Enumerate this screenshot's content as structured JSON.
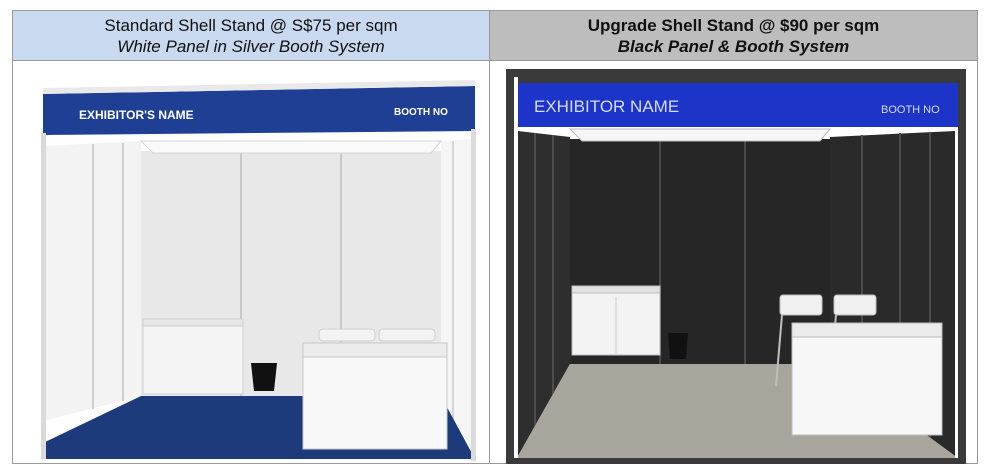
{
  "standard": {
    "title": "Standard Shell Stand @ S$75 per sqm",
    "subtitle": "White Panel in Silver Booth System",
    "fascia_name": "EXHIBITOR'S NAME",
    "fascia_booth": "BOOTH NO",
    "colors": {
      "header_bg": "#c9d9f0",
      "fascia": "#1e3f93",
      "carpet": "#1d3b7a",
      "panel": "#f1f1f1"
    }
  },
  "upgrade": {
    "title": "Upgrade Shell Stand @ $90 per sqm",
    "subtitle": "Black Panel & Booth System",
    "fascia_name": "EXHIBITOR NAME",
    "fascia_booth": "BOOTH NO",
    "colors": {
      "header_bg": "#bdbdbd",
      "fascia": "#1d34c9",
      "carpet": "#a8a69c",
      "panel": "#2b2b2b"
    }
  }
}
